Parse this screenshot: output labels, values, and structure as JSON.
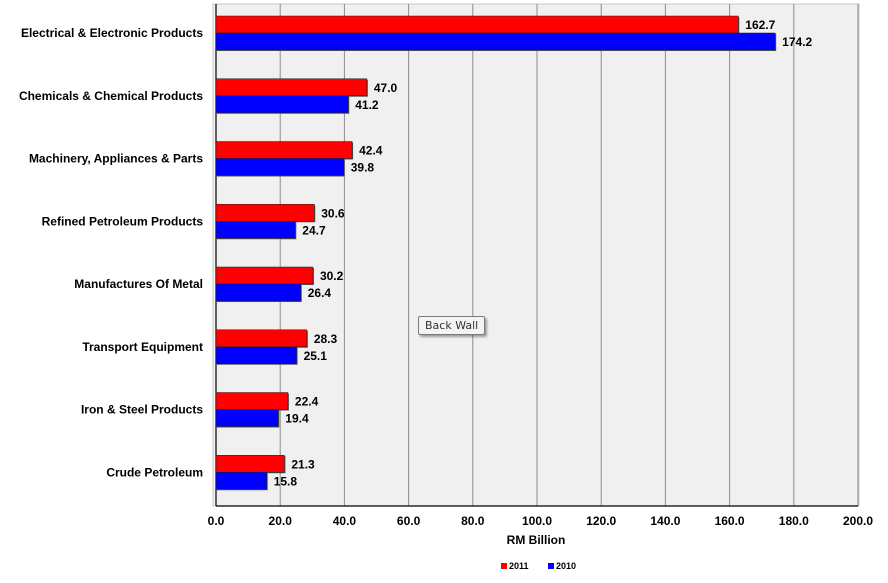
{
  "chart_data": {
    "type": "bar",
    "orientation": "horizontal",
    "categories": [
      "Electrical & Electronic Products",
      "Chemicals & Chemical Products",
      "Machinery, Appliances & Parts",
      "Refined Petroleum Products",
      "Manufactures Of Metal",
      "Transport Equipment",
      "Iron & Steel Products",
      "Crude Petroleum"
    ],
    "series": [
      {
        "name": "2011",
        "color": "#ff0000",
        "values": [
          162.7,
          47.0,
          42.4,
          30.6,
          30.2,
          28.3,
          22.4,
          21.3
        ]
      },
      {
        "name": "2010",
        "color": "#0000ff",
        "values": [
          174.2,
          41.2,
          39.8,
          24.7,
          26.4,
          25.1,
          19.4,
          15.8
        ]
      }
    ],
    "xlabel": "RM Billion",
    "xlim": [
      0,
      200
    ],
    "xticks": [
      "0.0",
      "20.0",
      "40.0",
      "60.0",
      "80.0",
      "100.0",
      "120.0",
      "140.0",
      "160.0",
      "180.0",
      "200.0"
    ],
    "grid": true,
    "legend": "bottom-center"
  },
  "tooltip": {
    "label": "Back Wall"
  }
}
